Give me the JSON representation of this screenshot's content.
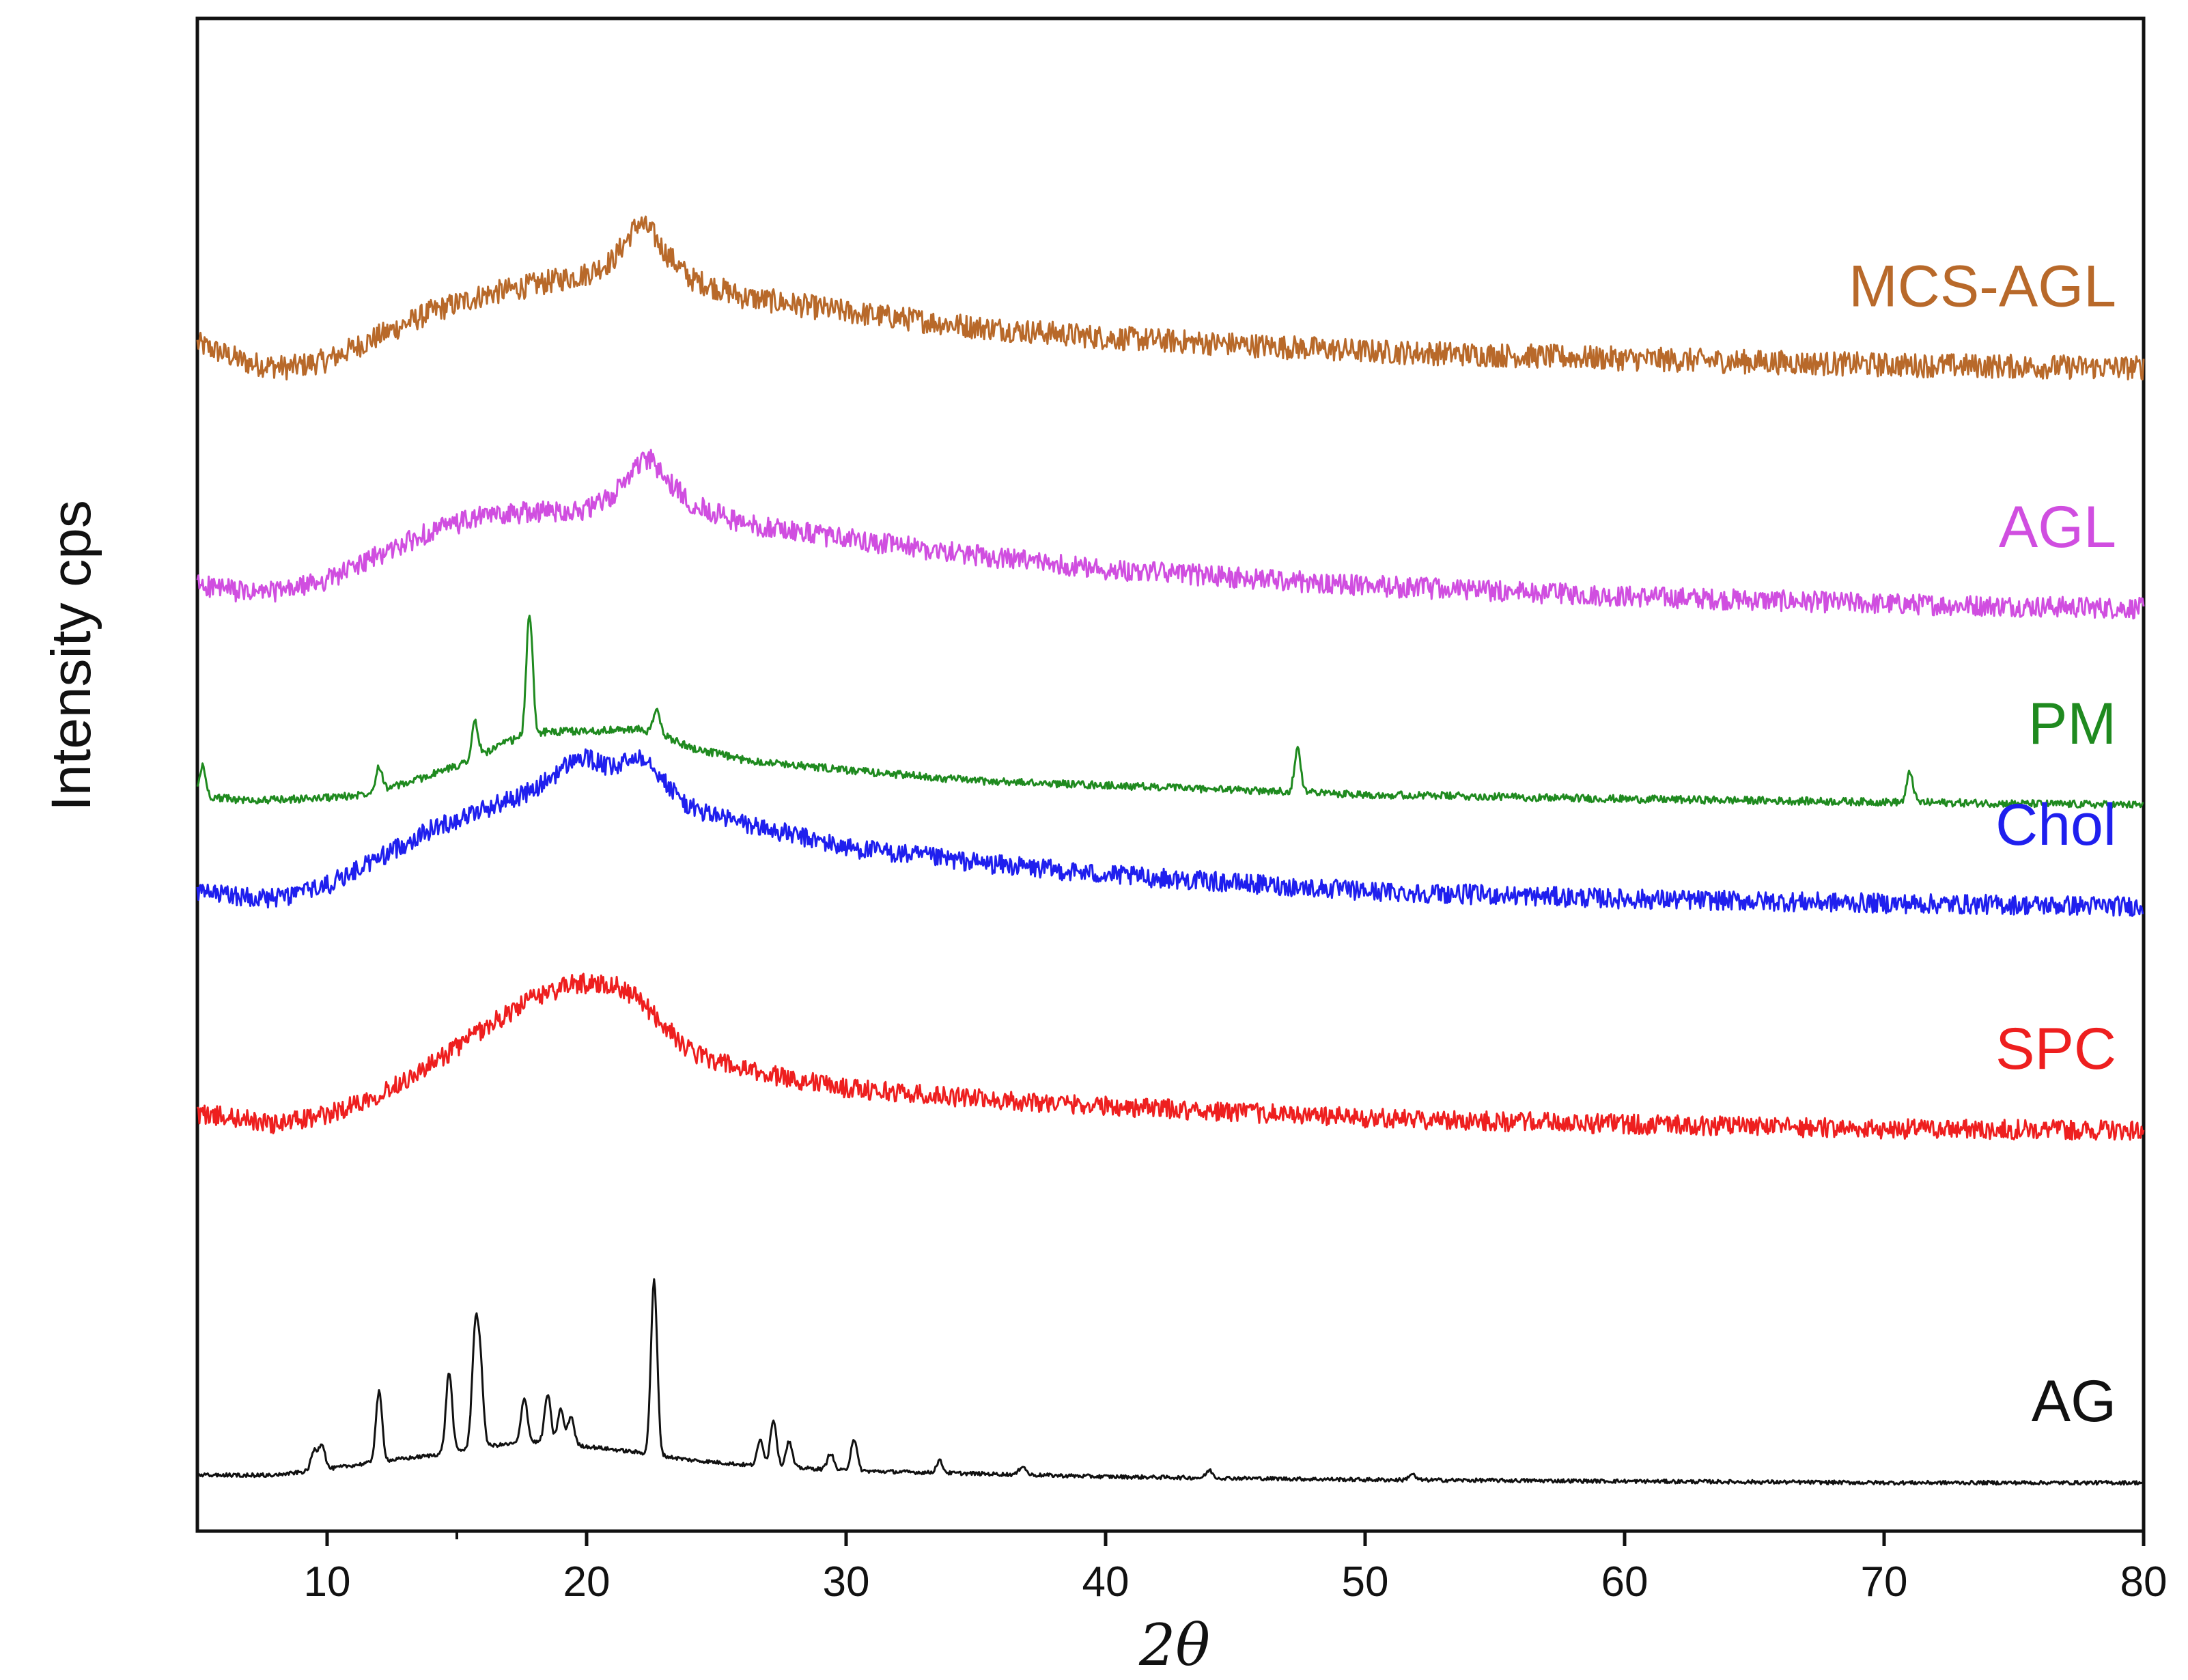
{
  "chart_data": {
    "type": "line",
    "title": "",
    "xlabel": "2θ",
    "ylabel": "Intensity cps",
    "xlim": [
      5,
      80
    ],
    "xticks": [
      10,
      20,
      30,
      40,
      50,
      60,
      70,
      80
    ],
    "xtick_labels": [
      "10",
      "20",
      "30",
      "40",
      "50",
      "60",
      "70",
      "80"
    ],
    "y_units": "arbitrary, stacked offsets (0 = bottom of plot, 100 = top)",
    "ylim": [
      0,
      100
    ],
    "grid": false,
    "legend": "labels placed at right end of each trace",
    "series": [
      {
        "name": "MCS-AGL",
        "color": "#b8692a",
        "noise": 1.6,
        "points": [
          [
            5,
            78.5
          ],
          [
            7,
            77.2
          ],
          [
            8.5,
            76.9
          ],
          [
            10,
            77.4
          ],
          [
            12,
            79.0
          ],
          [
            14,
            80.6
          ],
          [
            16,
            81.7
          ],
          [
            18,
            82.4
          ],
          [
            20,
            83.1
          ],
          [
            21,
            84.0
          ],
          [
            22,
            86.5
          ],
          [
            22.5,
            85.9
          ],
          [
            23,
            84.6
          ],
          [
            24,
            82.8
          ],
          [
            26,
            81.6
          ],
          [
            30,
            80.6
          ],
          [
            35,
            79.6
          ],
          [
            40,
            78.9
          ],
          [
            50,
            78.0
          ],
          [
            60,
            77.5
          ],
          [
            70,
            77.1
          ],
          [
            80,
            76.9
          ]
        ],
        "peaks": []
      },
      {
        "name": "AGL",
        "color": "#d04ee0",
        "noise": 1.4,
        "points": [
          [
            5,
            62.6
          ],
          [
            7,
            62.0
          ],
          [
            8.5,
            62.2
          ],
          [
            10,
            62.9
          ],
          [
            12,
            64.5
          ],
          [
            14,
            66.1
          ],
          [
            16,
            67.1
          ],
          [
            18,
            67.4
          ],
          [
            20,
            67.5
          ],
          [
            21,
            68.4
          ],
          [
            22,
            70.6
          ],
          [
            22.5,
            70.8
          ],
          [
            23,
            69.6
          ],
          [
            24,
            68.0
          ],
          [
            26,
            66.6
          ],
          [
            30,
            65.6
          ],
          [
            35,
            64.5
          ],
          [
            40,
            63.6
          ],
          [
            50,
            62.5
          ],
          [
            60,
            61.8
          ],
          [
            70,
            61.3
          ],
          [
            80,
            61.0
          ]
        ],
        "peaks": []
      },
      {
        "name": "PM",
        "color": "#1f8a1f",
        "noise": 0.5,
        "points": [
          [
            5,
            48.6
          ],
          [
            7,
            48.3
          ],
          [
            9,
            48.4
          ],
          [
            11,
            48.6
          ],
          [
            13,
            49.4
          ],
          [
            15,
            50.6
          ],
          [
            16,
            51.4
          ],
          [
            17,
            52.2
          ],
          [
            18,
            52.8
          ],
          [
            20,
            52.9
          ],
          [
            22,
            53.0
          ],
          [
            23,
            52.6
          ],
          [
            24,
            51.8
          ],
          [
            26,
            51.0
          ],
          [
            30,
            50.3
          ],
          [
            35,
            49.6
          ],
          [
            40,
            49.3
          ],
          [
            45,
            49.0
          ],
          [
            50,
            48.7
          ],
          [
            60,
            48.4
          ],
          [
            70,
            48.2
          ],
          [
            80,
            48.0
          ]
        ],
        "peaks": [
          [
            5.2,
            2.0
          ],
          [
            12,
            1.6
          ],
          [
            15.7,
            2.3
          ],
          [
            17.8,
            8.0
          ],
          [
            22.7,
            1.6
          ],
          [
            47.4,
            3.0
          ],
          [
            71,
            2.0
          ]
        ]
      },
      {
        "name": "Chol",
        "color": "#1f1fee",
        "noise": 1.3,
        "points": [
          [
            5,
            42.2
          ],
          [
            6.5,
            42.0
          ],
          [
            8,
            41.8
          ],
          [
            10,
            42.7
          ],
          [
            12,
            44.5
          ],
          [
            14,
            46.4
          ],
          [
            16,
            47.7
          ],
          [
            18,
            49.0
          ],
          [
            19.5,
            51.0
          ],
          [
            20,
            51.1
          ],
          [
            21,
            50.4
          ],
          [
            22,
            51.3
          ],
          [
            22.5,
            50.9
          ],
          [
            23,
            49.5
          ],
          [
            24,
            47.8
          ],
          [
            26,
            46.8
          ],
          [
            30,
            45.2
          ],
          [
            35,
            44.2
          ],
          [
            40,
            43.4
          ],
          [
            50,
            42.3
          ],
          [
            60,
            41.8
          ],
          [
            70,
            41.5
          ],
          [
            80,
            41.3
          ]
        ],
        "peaks": []
      },
      {
        "name": "SPC",
        "color": "#ee1f1f",
        "noise": 1.3,
        "points": [
          [
            5,
            27.6
          ],
          [
            6.5,
            27.3
          ],
          [
            8,
            26.9
          ],
          [
            10,
            27.5
          ],
          [
            12,
            28.9
          ],
          [
            14,
            30.8
          ],
          [
            16,
            33.2
          ],
          [
            18,
            35.3
          ],
          [
            19.5,
            36.2
          ],
          [
            21,
            36.2
          ],
          [
            22,
            35.2
          ],
          [
            23,
            33.4
          ],
          [
            24,
            31.7
          ],
          [
            26,
            30.5
          ],
          [
            30,
            29.3
          ],
          [
            35,
            28.6
          ],
          [
            40,
            28.1
          ],
          [
            50,
            27.3
          ],
          [
            60,
            26.9
          ],
          [
            70,
            26.6
          ],
          [
            80,
            26.5
          ]
        ],
        "peaks": []
      },
      {
        "name": "AG",
        "color": "#111111",
        "noise": 0.25,
        "points": [
          [
            5,
            3.7
          ],
          [
            8,
            3.7
          ],
          [
            10,
            4.1
          ],
          [
            12,
            4.6
          ],
          [
            14,
            5.0
          ],
          [
            16,
            5.6
          ],
          [
            18,
            5.9
          ],
          [
            20,
            5.6
          ],
          [
            22,
            5.2
          ],
          [
            24,
            4.7
          ],
          [
            26,
            4.4
          ],
          [
            30,
            4.0
          ],
          [
            35,
            3.8
          ],
          [
            40,
            3.6
          ],
          [
            50,
            3.4
          ],
          [
            60,
            3.3
          ],
          [
            70,
            3.2
          ],
          [
            80,
            3.2
          ]
        ],
        "peaks": [
          [
            9.5,
            1.3
          ],
          [
            9.8,
            1.7
          ],
          [
            12,
            4.6
          ],
          [
            14.7,
            5.3
          ],
          [
            15.7,
            7.1
          ],
          [
            15.9,
            5.0
          ],
          [
            17.6,
            3.0
          ],
          [
            18.5,
            3.2
          ],
          [
            19,
            2.3
          ],
          [
            19.4,
            1.9
          ],
          [
            22.6,
            11.5
          ],
          [
            26.7,
            1.7
          ],
          [
            27.2,
            3.1
          ],
          [
            27.8,
            1.7
          ],
          [
            29.4,
            1.1
          ],
          [
            30.3,
            2.1
          ],
          [
            33.6,
            0.8
          ],
          [
            36.8,
            0.6
          ],
          [
            44,
            0.5
          ],
          [
            51.8,
            0.4
          ]
        ]
      }
    ]
  }
}
